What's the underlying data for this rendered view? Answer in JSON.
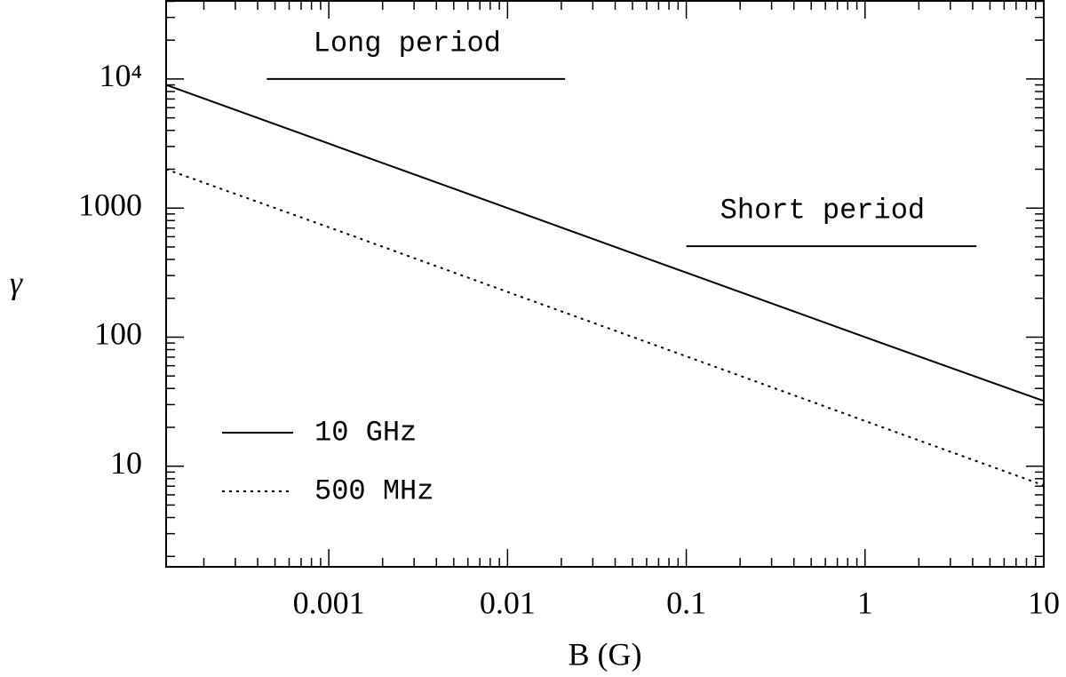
{
  "chart_data": {
    "type": "line",
    "x_label": "B (G)",
    "y_label": "γ",
    "x": [
      0.000123,
      0.001,
      0.01,
      0.1,
      1,
      10
    ],
    "series": [
      {
        "name": "10 GHz",
        "color": "#000000",
        "dash": "solid",
        "values": [
          9000,
          3160,
          1000,
          316,
          100,
          32
        ]
      },
      {
        "name": "500 MHz",
        "color": "#000000",
        "dash": "dotted",
        "values": [
          2000,
          710,
          224,
          71,
          22.4,
          7.1
        ]
      }
    ],
    "annotations": [
      {
        "text": "Long period",
        "x": [
          0.00045,
          0.021
        ],
        "y": 10000
      },
      {
        "text": "Short period",
        "x": [
          0.1,
          4.2
        ],
        "y": 506
      }
    ],
    "xlim": [
      0.000123,
      10
    ],
    "ylim": [
      1.66,
      40300
    ],
    "xscale": "log",
    "yscale": "log",
    "minor_ticks": true,
    "xticks": [
      0.001,
      0.01,
      0.1,
      1,
      10
    ],
    "yticks": [
      10,
      100,
      1000,
      {
        "value": 10000,
        "label": "10⁴"
      }
    ],
    "legend": "lower left"
  }
}
